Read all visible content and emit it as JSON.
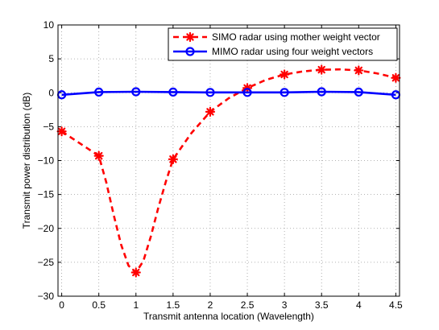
{
  "chart_data": {
    "type": "line",
    "title": "",
    "xlabel": "Transmit antenna location (Wavelength)",
    "ylabel": "Transmit power distribution (dB)",
    "xlim": [
      -0.05,
      4.55
    ],
    "ylim": [
      -30,
      10
    ],
    "x_ticks": [
      0,
      0.5,
      1,
      1.5,
      2,
      2.5,
      3,
      3.5,
      4,
      4.5
    ],
    "x_tick_labels": [
      "0",
      "0.5",
      "1",
      "1.5",
      "2",
      "2.5",
      "3",
      "3.5",
      "4",
      "4.5"
    ],
    "y_ticks": [
      -30,
      -25,
      -20,
      -15,
      -10,
      -5,
      0,
      5,
      10
    ],
    "y_tick_labels": [
      "−30",
      "−25",
      "−20",
      "−15",
      "−10",
      "−5",
      "0",
      "5",
      "10"
    ],
    "grid": true,
    "legend_position": "top-right",
    "x": [
      0,
      0.5,
      1,
      1.5,
      2,
      2.5,
      3,
      3.5,
      4,
      4.5
    ],
    "series": [
      {
        "name": "SIMO radar using mother weight vector",
        "color": "#ff0000",
        "line_style": "dashed",
        "marker": "asterisk",
        "values": [
          -5.7,
          -9.3,
          -26.5,
          -9.8,
          -2.8,
          0.7,
          2.7,
          3.4,
          3.3,
          2.2
        ],
        "curve_x": [
          0,
          0.5,
          0.6,
          0.7,
          0.8,
          0.9,
          1,
          1.1,
          1.2,
          1.3,
          1.4,
          1.5,
          1.75,
          2,
          2.25,
          2.5,
          2.75,
          3,
          3.25,
          3.5,
          3.75,
          4,
          4.25,
          4.5
        ],
        "curve_y": [
          -5.7,
          -9.3,
          -13.2,
          -18,
          -22.4,
          -25.5,
          -26.5,
          -24.8,
          -21.2,
          -17,
          -13.2,
          -9.8,
          -5.9,
          -2.8,
          -0.8,
          0.7,
          1.9,
          2.7,
          3.15,
          3.4,
          3.45,
          3.3,
          2.85,
          2.2
        ]
      },
      {
        "name": "MIMO radar using four weight vectors",
        "color": "#0000ff",
        "line_style": "solid",
        "marker": "circle",
        "values": [
          -0.3,
          0.1,
          0.15,
          0.1,
          0.05,
          0.05,
          0.05,
          0.15,
          0.1,
          -0.3
        ]
      }
    ]
  }
}
